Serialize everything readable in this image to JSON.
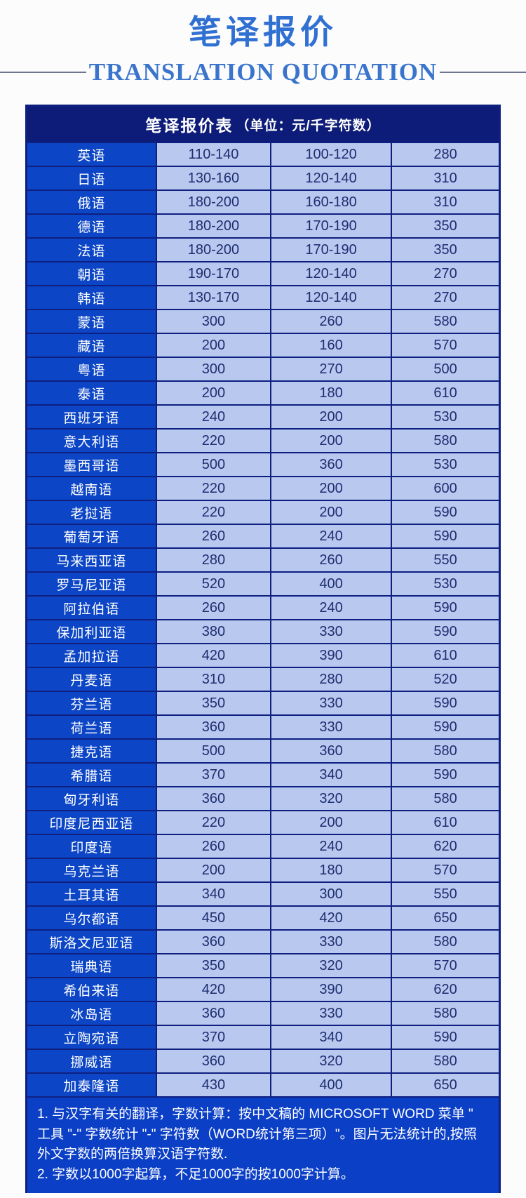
{
  "page": {
    "title": "笔译报价",
    "subtitle": "TRANSLATION QUOTATION"
  },
  "colors": {
    "title_blue": "#3070D2",
    "subtitle_blue": "#3A74CC",
    "header_navy": "#0D1C78",
    "border_navy": "#0F1F80",
    "language_cell_blue": "#0C46C6",
    "price_cell_light_blue": "#B9C8EF",
    "price_text_navy": "#1D2E70",
    "notes_blue": "#0B3FC6"
  },
  "table": {
    "header_title": "笔译报价表",
    "header_unit": "（单位：元/千字符数）",
    "rows": [
      {
        "language": "英语",
        "prices": [
          "110-140",
          "100-120",
          "280"
        ]
      },
      {
        "language": "日语",
        "prices": [
          "130-160",
          "120-140",
          "310"
        ]
      },
      {
        "language": "俄语",
        "prices": [
          "180-200",
          "160-180",
          "310"
        ]
      },
      {
        "language": "德语",
        "prices": [
          "180-200",
          "170-190",
          "350"
        ]
      },
      {
        "language": "法语",
        "prices": [
          "180-200",
          "170-190",
          "350"
        ]
      },
      {
        "language": "朝语",
        "prices": [
          "190-170",
          "120-140",
          "270"
        ]
      },
      {
        "language": "韩语",
        "prices": [
          "130-170",
          "120-140",
          "270"
        ]
      },
      {
        "language": "蒙语",
        "prices": [
          "300",
          "260",
          "580"
        ]
      },
      {
        "language": "藏语",
        "prices": [
          "200",
          "160",
          "570"
        ]
      },
      {
        "language": "粤语",
        "prices": [
          "300",
          "270",
          "500"
        ]
      },
      {
        "language": "泰语",
        "prices": [
          "200",
          "180",
          "610"
        ]
      },
      {
        "language": "西班牙语",
        "prices": [
          "240",
          "200",
          "530"
        ]
      },
      {
        "language": "意大利语",
        "prices": [
          "220",
          "200",
          "580"
        ]
      },
      {
        "language": "墨西哥语",
        "prices": [
          "500",
          "360",
          "530"
        ]
      },
      {
        "language": "越南语",
        "prices": [
          "220",
          "200",
          "600"
        ]
      },
      {
        "language": "老挝语",
        "prices": [
          "220",
          "200",
          "590"
        ]
      },
      {
        "language": "葡萄牙语",
        "prices": [
          "260",
          "240",
          "590"
        ]
      },
      {
        "language": "马来西亚语",
        "prices": [
          "280",
          "260",
          "550"
        ]
      },
      {
        "language": "罗马尼亚语",
        "prices": [
          "520",
          "400",
          "530"
        ]
      },
      {
        "language": "阿拉伯语",
        "prices": [
          "260",
          "240",
          "590"
        ]
      },
      {
        "language": "保加利亚语",
        "prices": [
          "380",
          "330",
          "590"
        ]
      },
      {
        "language": "孟加拉语",
        "prices": [
          "420",
          "390",
          "610"
        ]
      },
      {
        "language": "丹麦语",
        "prices": [
          "310",
          "280",
          "520"
        ]
      },
      {
        "language": "芬兰语",
        "prices": [
          "350",
          "330",
          "590"
        ]
      },
      {
        "language": "荷兰语",
        "prices": [
          "360",
          "330",
          "590"
        ]
      },
      {
        "language": "捷克语",
        "prices": [
          "500",
          "360",
          "580"
        ]
      },
      {
        "language": "希腊语",
        "prices": [
          "370",
          "340",
          "590"
        ]
      },
      {
        "language": "匈牙利语",
        "prices": [
          "360",
          "320",
          "580"
        ]
      },
      {
        "language": "印度尼西亚语",
        "prices": [
          "220",
          "200",
          "610"
        ]
      },
      {
        "language": "印度语",
        "prices": [
          "260",
          "240",
          "620"
        ]
      },
      {
        "language": "乌克兰语",
        "prices": [
          "200",
          "180",
          "570"
        ]
      },
      {
        "language": "土耳其语",
        "prices": [
          "340",
          "300",
          "550"
        ]
      },
      {
        "language": "乌尔都语",
        "prices": [
          "450",
          "420",
          "650"
        ]
      },
      {
        "language": "斯洛文尼亚语",
        "prices": [
          "360",
          "330",
          "580"
        ]
      },
      {
        "language": "瑞典语",
        "prices": [
          "350",
          "320",
          "570"
        ]
      },
      {
        "language": "希伯来语",
        "prices": [
          "420",
          "390",
          "620"
        ]
      },
      {
        "language": "冰岛语",
        "prices": [
          "360",
          "330",
          "580"
        ]
      },
      {
        "language": "立陶宛语",
        "prices": [
          "370",
          "340",
          "590"
        ]
      },
      {
        "language": "挪威语",
        "prices": [
          "360",
          "320",
          "580"
        ]
      },
      {
        "language": "加泰隆语",
        "prices": [
          "430",
          "400",
          "650"
        ]
      }
    ]
  },
  "notes": [
    "1. 与汉字有关的翻译，字数计算：按中文稿的 MICROSOFT WORD 菜单 \" 工具 \"-\" 字数统计 \"-\" 字符数（WORD统计第三项）\"。图片无法统计的,按照外文字数的两倍换算汉语字符数.",
    "2. 字数以1000字起算，不足1000字的按1000字计算。"
  ]
}
